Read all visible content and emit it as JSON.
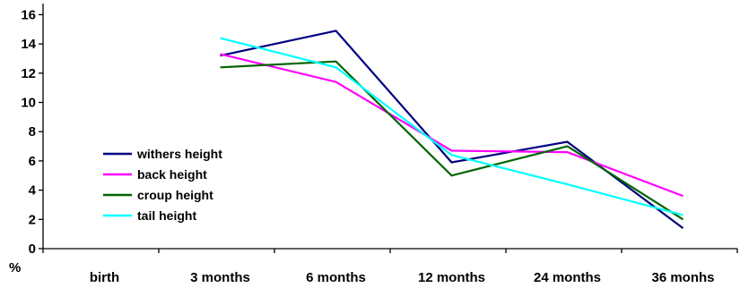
{
  "chart_data": {
    "type": "line",
    "categories": [
      "birth",
      "3 months",
      "6 months",
      "12 months",
      "24 months",
      "36 monhs"
    ],
    "ylabel": "%",
    "ylim": [
      0,
      17
    ],
    "yticks": [
      0,
      2,
      4,
      6,
      8,
      10,
      12,
      14,
      16
    ],
    "grid": false,
    "legend_position": "lower-left",
    "series": [
      {
        "name": "withers height",
        "color": "#000080",
        "values": [
          null,
          13.2,
          14.9,
          5.9,
          7.3,
          1.4
        ]
      },
      {
        "name": "back height",
        "color": "#ff00ff",
        "values": [
          null,
          13.3,
          11.4,
          6.7,
          6.6,
          3.6
        ]
      },
      {
        "name": "croup height",
        "color": "#006400",
        "values": [
          null,
          12.4,
          12.8,
          5.0,
          7.0,
          2.0
        ]
      },
      {
        "name": "tail height",
        "color": "#00ffff",
        "values": [
          null,
          14.4,
          12.4,
          6.4,
          4.4,
          2.3
        ]
      }
    ]
  }
}
